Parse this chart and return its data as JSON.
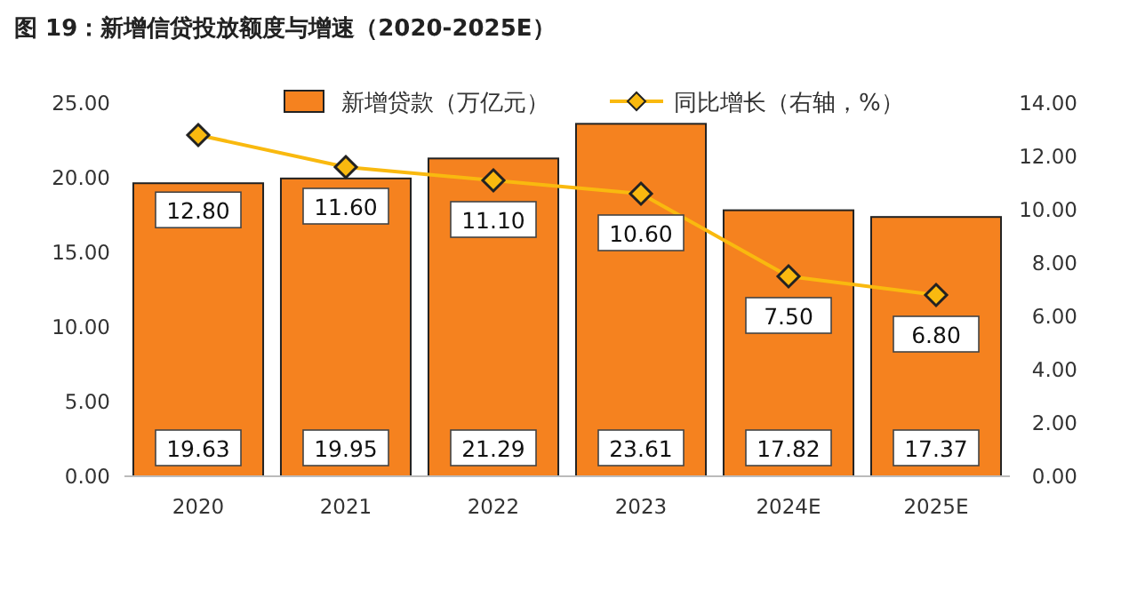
{
  "chart_data": {
    "type": "bar",
    "title": "图 19：新增信贷投放额度与增速（2020-2025E）",
    "categories": [
      "2020",
      "2021",
      "2022",
      "2023",
      "2024E",
      "2025E"
    ],
    "series": [
      {
        "name": "新增贷款（万亿元）",
        "color": "#f5821f",
        "values": [
          19.63,
          19.95,
          21.29,
          23.61,
          17.82,
          17.37
        ]
      },
      {
        "name": "同比增长（右轴，%）",
        "type": "line",
        "axis": "y2",
        "color": "#f9b90f",
        "marker": "diamond",
        "values": [
          12.8,
          11.6,
          11.1,
          10.6,
          7.5,
          6.8
        ],
        "value_labels": [
          "12.80",
          "11.60",
          "11.10",
          "10.60",
          "7.50",
          "6.80"
        ]
      }
    ],
    "ylim": [
      0,
      25
    ],
    "yticks": [
      {
        "value": 0,
        "label": "0.00"
      },
      {
        "value": 5,
        "label": "5.00"
      },
      {
        "value": 10,
        "label": "10.00"
      },
      {
        "value": 15,
        "label": "15.00"
      },
      {
        "value": 20,
        "label": "20.00"
      },
      {
        "value": 25,
        "label": "25.00"
      }
    ],
    "y2lim": [
      0,
      14
    ],
    "y2ticks": [
      {
        "value": 0,
        "label": "0.00"
      },
      {
        "value": 2,
        "label": "2.00"
      },
      {
        "value": 4,
        "label": "4.00"
      },
      {
        "value": 6,
        "label": "6.00"
      },
      {
        "value": 8,
        "label": "8.00"
      },
      {
        "value": 10,
        "label": "10.00"
      },
      {
        "value": 12,
        "label": "12.00"
      },
      {
        "value": 14,
        "label": "14.00"
      }
    ],
    "data_labels": true,
    "legend": "top",
    "grid": false
  }
}
